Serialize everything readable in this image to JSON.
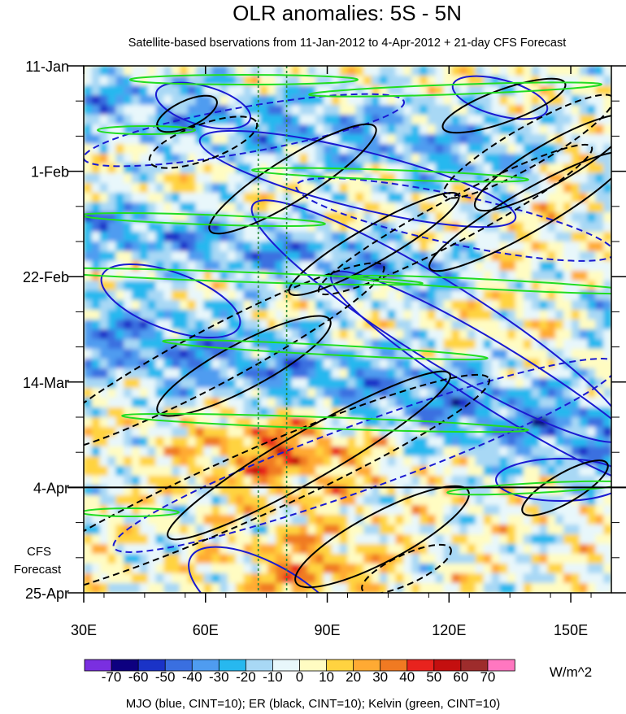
{
  "chart_data": {
    "type": "heatmap",
    "title": "OLR anomalies: 5S - 5N",
    "subtitle": "Satellite-based bservations from 11-Jan-2012 to 4-Apr-2012 + 21-day CFS Forecast",
    "x_ticks": [
      {
        "value": 30,
        "label": "30E"
      },
      {
        "value": 60,
        "label": "60E"
      },
      {
        "value": 90,
        "label": "90E"
      },
      {
        "value": 120,
        "label": "120E"
      },
      {
        "value": 150,
        "label": "150E"
      }
    ],
    "xlim": [
      30,
      160
    ],
    "y_ticks": [
      {
        "value": "2012-01-11",
        "label": "11-Jan"
      },
      {
        "value": "2012-02-01",
        "label": "1-Feb"
      },
      {
        "value": "2012-02-22",
        "label": "22-Feb"
      },
      {
        "value": "2012-03-14",
        "label": "14-Mar"
      },
      {
        "value": "2012-04-04",
        "label": "4-Apr"
      },
      {
        "value": "2012-04-25",
        "label": "25-Apr"
      }
    ],
    "ylim": [
      "2012-01-11",
      "2012-04-25"
    ],
    "forecast_start": "2012-04-04",
    "forecast_label": [
      "CFS",
      "Forecast"
    ],
    "reference_longitudes": [
      73,
      80
    ],
    "colorbar": {
      "unit": "W/m^2",
      "levels": [
        -70,
        -60,
        -50,
        -40,
        -30,
        -20,
        -10,
        0,
        10,
        20,
        30,
        40,
        50,
        60,
        70
      ],
      "level_labels": [
        "-70",
        "-60",
        "-50",
        "-40",
        "-30",
        "-20",
        "-10",
        "0",
        "10",
        "20",
        "30",
        "40",
        "50",
        "60",
        "70"
      ],
      "colors": [
        "#7a2fe0",
        "#0d0080",
        "#1a33c7",
        "#3a6fe0",
        "#4f9cf0",
        "#27b8ef",
        "#a8d8f5",
        "#e8f7fb",
        "#fffcc2",
        "#ffd340",
        "#ffaa33",
        "#f07a22",
        "#e8231e",
        "#c40f0f",
        "#9e2c2c",
        "#ff77c0"
      ]
    },
    "overlay_caption": "MJO (blue, CINT=10); ER (black, CINT=10); Kelvin (green, CINT=10)",
    "overlay_colors": {
      "MJO": "#1a1ad1",
      "ER": "#000000",
      "Kelvin": "#22dd22"
    }
  }
}
